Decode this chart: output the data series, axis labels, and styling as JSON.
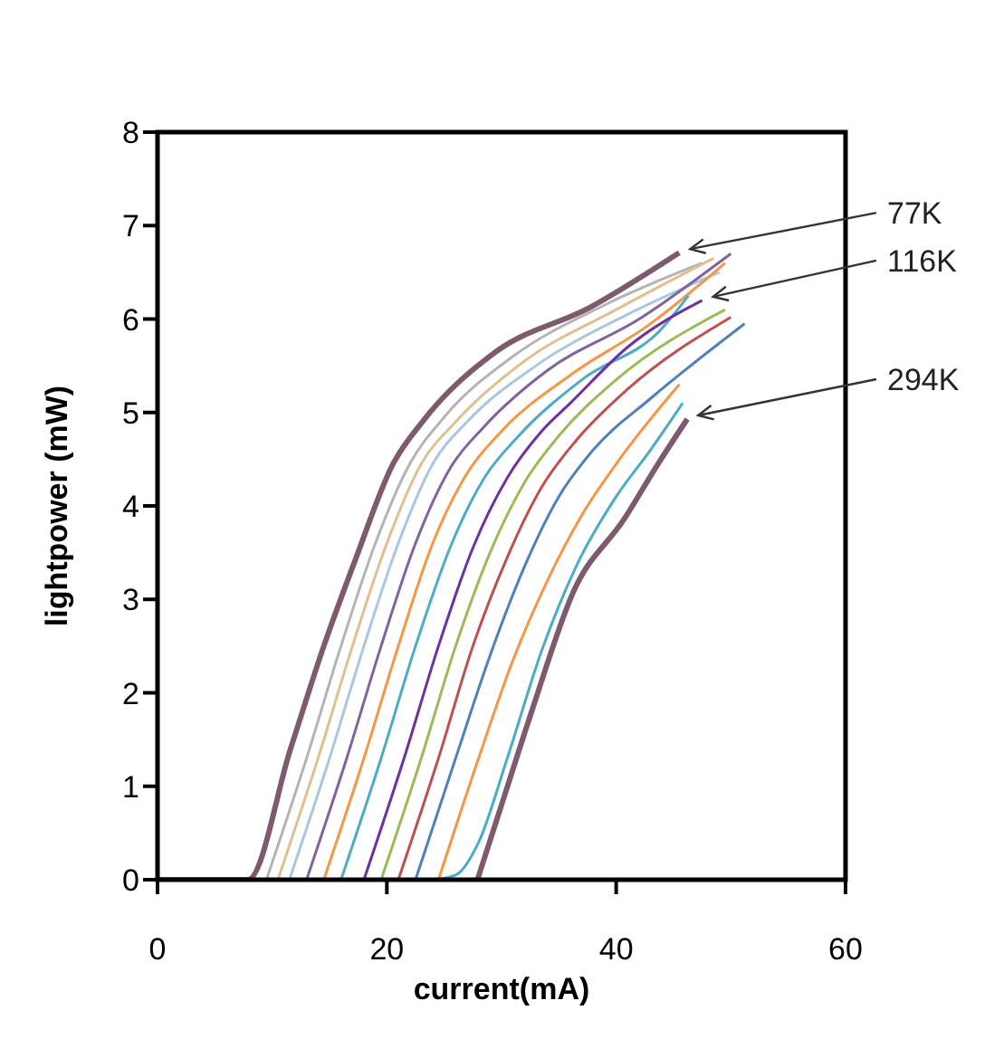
{
  "chart_data": {
    "type": "line",
    "xlabel": "current(mA)",
    "ylabel": "lightpower (mW)",
    "xlim": [
      0,
      60
    ],
    "xticks": [
      0,
      20,
      40,
      60
    ],
    "ylim": [
      0,
      8
    ],
    "yticks": [
      0,
      1,
      2,
      3,
      4,
      5,
      6,
      7,
      8
    ],
    "grid": false,
    "annotations": [
      {
        "text": "77K",
        "x": 45.5,
        "y": 6.71
      },
      {
        "text": "116K",
        "x": 47.5,
        "y": 6.2
      },
      {
        "text": "294K",
        "x": 46.2,
        "y": 4.93
      }
    ],
    "series": [
      {
        "color": "#7d5a6e",
        "x": [
          0,
          7.9,
          11.6,
          14.5,
          17.3,
          20.5,
          23.1,
          29.4,
          37.8,
          45.5
        ],
        "values": [
          0,
          0,
          1.4,
          2.5,
          3.44,
          4.44,
          4.9,
          5.64,
          6.13,
          6.71
        ]
      },
      {
        "color": "#b4b4b4",
        "x": [
          9.5,
          13,
          16,
          19,
          22,
          25,
          31,
          39,
          47.5
        ],
        "values": [
          0,
          1.3,
          2.5,
          3.6,
          4.45,
          4.95,
          5.6,
          6.15,
          6.6
        ]
      },
      {
        "color": "#e0c090",
        "x": [
          10.5,
          14,
          17,
          20,
          23,
          26,
          32,
          40,
          48.5
        ],
        "values": [
          0,
          1.3,
          2.5,
          3.6,
          4.45,
          4.9,
          5.55,
          6.1,
          6.65
        ]
      },
      {
        "color": "#a8c8e0",
        "x": [
          11.5,
          15,
          18,
          21,
          24,
          27,
          33,
          41,
          49
        ],
        "values": [
          0,
          1.3,
          2.5,
          3.6,
          4.45,
          4.9,
          5.5,
          6.05,
          6.5
        ]
      },
      {
        "color": "#8064a2",
        "x": [
          13,
          16.5,
          19.5,
          22.5,
          25.5,
          28.5,
          34,
          42,
          50
        ],
        "values": [
          0,
          1.3,
          2.5,
          3.6,
          4.4,
          4.85,
          5.45,
          6.0,
          6.7
        ]
      },
      {
        "color": "#f79646",
        "x": [
          14.5,
          18,
          21,
          24,
          27,
          30,
          36,
          43,
          49.5
        ],
        "values": [
          0,
          1.3,
          2.5,
          3.6,
          4.35,
          4.8,
          5.4,
          5.95,
          6.6
        ]
      },
      {
        "color": "#4bacc6",
        "x": [
          16,
          19.5,
          22.5,
          25.5,
          28.5,
          31.5,
          37,
          44,
          46.3
        ],
        "values": [
          0,
          1.3,
          2.5,
          3.55,
          4.3,
          4.75,
          5.35,
          5.9,
          6.25
        ]
      },
      {
        "color": "#7030a0",
        "x": [
          18,
          21.5,
          24.5,
          27.5,
          30.5,
          33.5,
          36,
          41,
          47.5
        ],
        "values": [
          0,
          1.3,
          2.5,
          3.55,
          4.3,
          4.8,
          5.1,
          5.7,
          6.2
        ]
      },
      {
        "color": "#9bbb59",
        "x": [
          19.5,
          23,
          26,
          29,
          32,
          35,
          40,
          49.5
        ],
        "values": [
          0,
          1.3,
          2.5,
          3.5,
          4.25,
          4.75,
          5.35,
          6.1
        ]
      },
      {
        "color": "#c0504d",
        "x": [
          21,
          24.5,
          27.5,
          30.5,
          33.5,
          36.5,
          41,
          50
        ],
        "values": [
          0,
          1.3,
          2.5,
          3.45,
          4.2,
          4.7,
          5.25,
          6.02
        ]
      },
      {
        "color": "#4f81bd",
        "x": [
          22.5,
          26,
          29,
          32,
          35,
          38,
          43,
          51.2
        ],
        "values": [
          0,
          1.3,
          2.4,
          3.35,
          4.1,
          4.6,
          5.15,
          5.95
        ]
      },
      {
        "color": "#f79646",
        "x": [
          24.5,
          28,
          31,
          34,
          37,
          40,
          45.5
        ],
        "values": [
          0,
          1.3,
          2.35,
          3.2,
          3.9,
          4.45,
          5.3
        ]
      },
      {
        "color": "#4bacc6",
        "x": [
          24,
          26,
          28,
          30.5,
          33.5,
          36.5,
          40,
          43,
          45.8
        ],
        "values": [
          0,
          0.05,
          0.4,
          1.3,
          2.45,
          3.35,
          4.1,
          4.6,
          5.1
        ]
      },
      {
        "color": "#7d5a6e",
        "x": [
          27.9,
          30,
          32.6,
          36.3,
          40.7,
          43.6,
          46.2
        ],
        "values": [
          0,
          0.8,
          1.79,
          3.09,
          3.86,
          4.44,
          4.93
        ]
      }
    ]
  }
}
